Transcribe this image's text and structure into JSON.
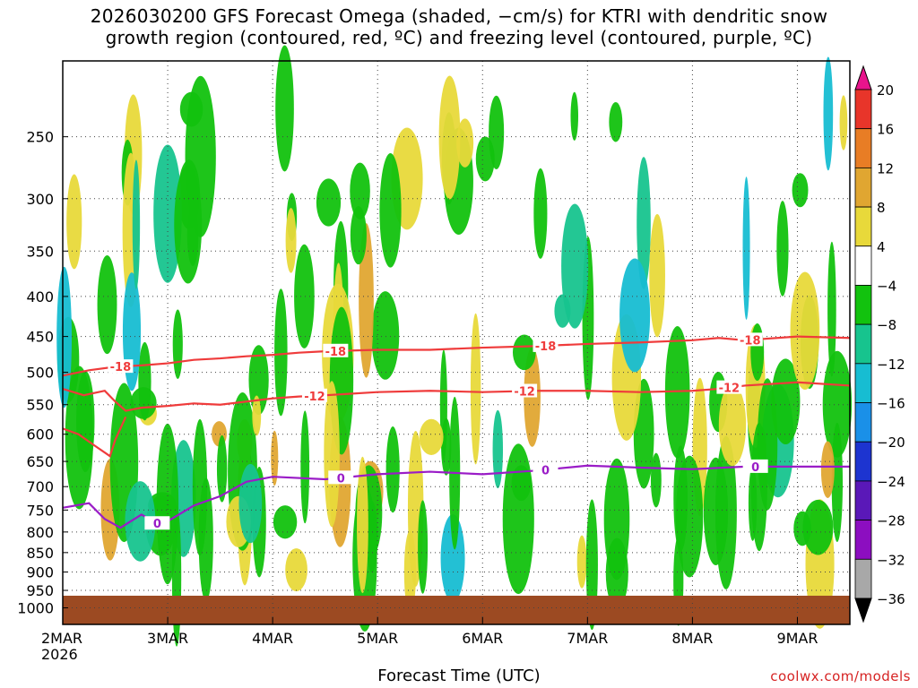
{
  "title_line1": "2026030200 GFS Forecast Omega (shaded, −cm/s) for KTRI with dendritic snow",
  "title_line2": "growth region (contoured, red, ºC) and freezing level (contoured, purple, ºC)",
  "credit": "coolwx.com/models",
  "chart_data": {
    "type": "heatmap",
    "title": "2026030200 GFS Forecast Omega (shaded, −cm/s) for KTRI with dendritic snow growth region (contoured, red, ºC) and freezing level (contoured, purple, ºC)",
    "xlabel": "Forecast Time (UTC)",
    "ylabel": "",
    "x_ticks": [
      "2MAR",
      "3MAR",
      "4MAR",
      "5MAR",
      "6MAR",
      "7MAR",
      "8MAR",
      "9MAR"
    ],
    "x_first_year": "2026",
    "y_ticks": [
      250,
      300,
      350,
      400,
      450,
      500,
      550,
      600,
      650,
      700,
      750,
      800,
      850,
      900,
      950,
      1000
    ],
    "xlim_days": [
      0,
      7.5
    ],
    "ylim_hpa": [
      200,
      1050
    ],
    "y_scale": "log-pressure",
    "grid": true,
    "colorbar": {
      "levels": [
        20,
        16,
        12,
        8,
        4,
        -4,
        -8,
        -12,
        -16,
        -20,
        -24,
        -28,
        -32,
        -36
      ],
      "colors": [
        "#e8148c",
        "#e8352a",
        "#e87d25",
        "#e0a631",
        "#e8d93a",
        "#ffffff",
        "#12c20e",
        "#17c48e",
        "#17bdd2",
        "#1a90e8",
        "#1d34d0",
        "#5a18b8",
        "#8c0ec0",
        "#a8a8a8",
        "#000000"
      ]
    },
    "contours": [
      {
        "name": "-18",
        "color": "#ef3b3b",
        "points": [
          [
            0,
            505
          ],
          [
            0.25,
            497
          ],
          [
            0.5,
            492
          ],
          [
            0.75,
            490
          ],
          [
            1,
            487
          ],
          [
            1.25,
            482
          ],
          [
            1.5,
            480
          ],
          [
            1.75,
            477
          ],
          [
            2,
            475
          ],
          [
            2.25,
            472
          ],
          [
            2.5,
            470
          ],
          [
            3,
            468
          ],
          [
            3.5,
            468
          ],
          [
            4,
            465
          ],
          [
            4.5,
            463
          ],
          [
            5,
            460
          ],
          [
            5.5,
            458
          ],
          [
            6,
            455
          ],
          [
            6.25,
            452
          ],
          [
            6.5,
            455
          ],
          [
            7,
            450
          ],
          [
            7.5,
            452
          ]
        ],
        "labels": [
          [
            0.55,
            "-18"
          ],
          [
            2.6,
            "-18"
          ],
          [
            4.6,
            "-18"
          ],
          [
            6.55,
            "-18"
          ]
        ]
      },
      {
        "name": "-12",
        "color": "#ef3b3b",
        "points": [
          [
            0,
            525
          ],
          [
            0.2,
            535
          ],
          [
            0.4,
            528
          ],
          [
            0.5,
            545
          ],
          [
            0.6,
            560
          ],
          [
            0.75,
            555
          ],
          [
            1,
            552
          ],
          [
            1.25,
            548
          ],
          [
            1.5,
            550
          ],
          [
            1.75,
            545
          ],
          [
            2,
            540
          ],
          [
            2.25,
            537
          ],
          [
            2.5,
            535
          ],
          [
            3,
            530
          ],
          [
            3.5,
            528
          ],
          [
            4,
            530
          ],
          [
            4.5,
            528
          ],
          [
            5,
            528
          ],
          [
            5.5,
            530
          ],
          [
            6,
            528
          ],
          [
            6.25,
            525
          ],
          [
            6.5,
            520
          ],
          [
            7,
            515
          ],
          [
            7.5,
            520
          ]
        ],
        "labels": [
          [
            2.4,
            "-12"
          ],
          [
            4.4,
            "-12"
          ],
          [
            6.35,
            "-12"
          ]
        ]
      },
      {
        "name": "-18b",
        "color": "#ef3b3b",
        "points": [
          [
            0,
            590
          ],
          [
            0.15,
            600
          ],
          [
            0.3,
            620
          ],
          [
            0.45,
            640
          ],
          [
            0.5,
            610
          ],
          [
            0.6,
            570
          ]
        ],
        "labels": []
      },
      {
        "name": "0",
        "color": "#9a1cc7",
        "points": [
          [
            0,
            745
          ],
          [
            0.25,
            735
          ],
          [
            0.4,
            770
          ],
          [
            0.55,
            790
          ],
          [
            0.75,
            760
          ],
          [
            0.9,
            780
          ],
          [
            1,
            775
          ],
          [
            1.25,
            740
          ],
          [
            1.5,
            720
          ],
          [
            1.75,
            690
          ],
          [
            2,
            680
          ],
          [
            2.5,
            685
          ],
          [
            3,
            675
          ],
          [
            3.5,
            670
          ],
          [
            4,
            675
          ],
          [
            4.5,
            668
          ],
          [
            5,
            658
          ],
          [
            5.5,
            662
          ],
          [
            6,
            665
          ],
          [
            6.5,
            660
          ],
          [
            7,
            660
          ],
          [
            7.5,
            660
          ]
        ],
        "labels": [
          [
            0.9,
            "0"
          ],
          [
            2.65,
            "0"
          ],
          [
            4.6,
            "0"
          ],
          [
            6.6,
            "0"
          ]
        ]
      }
    ],
    "terrain_hpa": 965
  }
}
